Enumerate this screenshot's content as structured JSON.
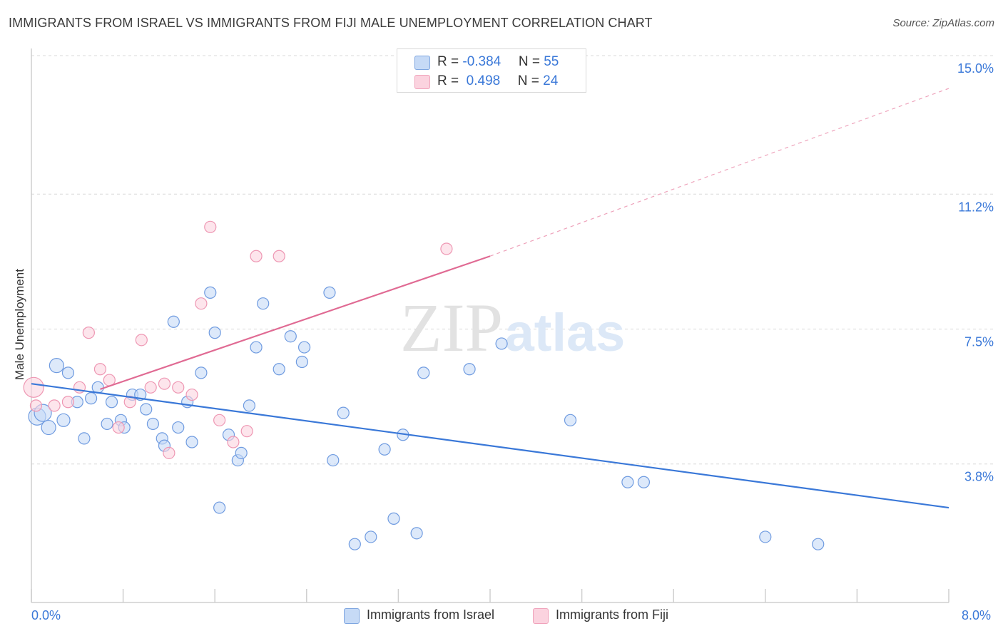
{
  "title": "IMMIGRANTS FROM ISRAEL VS IMMIGRANTS FROM FIJI MALE UNEMPLOYMENT CORRELATION CHART",
  "source": "Source: ZipAtlas.com",
  "watermark": {
    "zip": "ZIP",
    "atlas": "atlas"
  },
  "legend": {
    "israel": {
      "r_label": "R = ",
      "r_value": "-0.384",
      "n_label": "N = ",
      "n_value": "55"
    },
    "fiji": {
      "r_label": "R = ",
      "r_value": " 0.498",
      "n_label": "N = ",
      "n_value": "24"
    }
  },
  "colors": {
    "israel": "#a9c8f2",
    "israel_line": "#3a78d8",
    "fiji": "#f7b9cc",
    "fiji_line": "#e06a93",
    "axis_text": "#3a78d8"
  },
  "chart_data": {
    "type": "scatter",
    "title": "IMMIGRANTS FROM ISRAEL VS IMMIGRANTS FROM FIJI MALE UNEMPLOYMENT CORRELATION CHART",
    "xlabel": "",
    "ylabel": "Male Unemployment",
    "xlim": [
      0,
      8.0
    ],
    "ylim": [
      0,
      15.0
    ],
    "x_tick_labels": [
      "0.0%",
      "8.0%"
    ],
    "y_ticks": [
      3.8,
      7.5,
      11.2,
      15.0
    ],
    "y_tick_labels": [
      "3.8%",
      "7.5%",
      "11.2%",
      "15.0%"
    ],
    "grid": true,
    "legend_position": "top-center",
    "series": [
      {
        "name": "Immigrants from Israel",
        "color": "#a9c8f2",
        "trend": {
          "x0": 0.0,
          "y0": 6.0,
          "x1": 8.0,
          "y1": 2.6
        },
        "points": [
          [
            0.05,
            5.1
          ],
          [
            0.1,
            5.2
          ],
          [
            0.15,
            4.8
          ],
          [
            0.22,
            6.5
          ],
          [
            0.28,
            5.0
          ],
          [
            0.32,
            6.3
          ],
          [
            0.4,
            5.5
          ],
          [
            0.46,
            4.5
          ],
          [
            0.52,
            5.6
          ],
          [
            0.58,
            5.9
          ],
          [
            0.66,
            4.9
          ],
          [
            0.7,
            5.5
          ],
          [
            0.78,
            5.0
          ],
          [
            0.81,
            4.8
          ],
          [
            0.88,
            5.7
          ],
          [
            0.95,
            5.7
          ],
          [
            1.0,
            5.3
          ],
          [
            1.06,
            4.9
          ],
          [
            1.14,
            4.5
          ],
          [
            1.16,
            4.3
          ],
          [
            1.24,
            7.7
          ],
          [
            1.28,
            4.8
          ],
          [
            1.36,
            5.5
          ],
          [
            1.4,
            4.4
          ],
          [
            1.48,
            6.3
          ],
          [
            1.56,
            8.5
          ],
          [
            1.6,
            7.4
          ],
          [
            1.64,
            2.6
          ],
          [
            1.72,
            4.6
          ],
          [
            1.8,
            3.9
          ],
          [
            1.83,
            4.1
          ],
          [
            1.9,
            5.4
          ],
          [
            1.96,
            7.0
          ],
          [
            2.02,
            8.2
          ],
          [
            2.16,
            6.4
          ],
          [
            2.26,
            7.3
          ],
          [
            2.36,
            6.6
          ],
          [
            2.38,
            7.0
          ],
          [
            2.6,
            8.5
          ],
          [
            2.63,
            3.9
          ],
          [
            2.72,
            5.2
          ],
          [
            2.82,
            1.6
          ],
          [
            2.96,
            1.8
          ],
          [
            3.08,
            4.2
          ],
          [
            3.16,
            2.3
          ],
          [
            3.24,
            4.6
          ],
          [
            3.36,
            1.9
          ],
          [
            3.42,
            6.3
          ],
          [
            3.82,
            6.4
          ],
          [
            4.1,
            7.1
          ],
          [
            4.7,
            5.0
          ],
          [
            5.2,
            3.3
          ],
          [
            5.34,
            3.3
          ],
          [
            6.4,
            1.8
          ],
          [
            6.86,
            1.6
          ]
        ],
        "sizes": [
          12,
          12,
          10,
          10,
          9,
          8,
          8,
          8,
          8,
          8,
          8,
          8,
          8,
          8,
          8,
          8,
          8,
          8,
          8,
          8,
          8,
          8,
          8,
          8,
          8,
          8,
          8,
          8,
          8,
          8,
          8,
          8,
          8,
          8,
          8,
          8,
          8,
          8,
          8,
          8,
          8,
          8,
          8,
          8,
          8,
          8,
          8,
          8,
          8,
          8,
          8,
          8,
          8,
          8,
          8
        ]
      },
      {
        "name": "Immigrants from Fiji",
        "color": "#f7b9cc",
        "trend": {
          "x0": 0.6,
          "y0": 5.85,
          "x1": 4.0,
          "y1": 9.5
        },
        "trend_dashed": {
          "x0": 4.0,
          "y0": 9.5,
          "x1": 8.0,
          "y1": 14.1
        },
        "points": [
          [
            0.02,
            5.9
          ],
          [
            0.04,
            5.4
          ],
          [
            0.2,
            5.4
          ],
          [
            0.32,
            5.5
          ],
          [
            0.42,
            5.9
          ],
          [
            0.5,
            7.4
          ],
          [
            0.6,
            6.4
          ],
          [
            0.68,
            6.1
          ],
          [
            0.76,
            4.8
          ],
          [
            0.86,
            5.5
          ],
          [
            0.96,
            7.2
          ],
          [
            1.04,
            5.9
          ],
          [
            1.16,
            6.0
          ],
          [
            1.2,
            4.1
          ],
          [
            1.28,
            5.9
          ],
          [
            1.4,
            5.7
          ],
          [
            1.48,
            8.2
          ],
          [
            1.56,
            10.3
          ],
          [
            1.64,
            5.0
          ],
          [
            1.76,
            4.4
          ],
          [
            1.88,
            4.7
          ],
          [
            1.96,
            9.5
          ],
          [
            2.16,
            9.5
          ],
          [
            3.62,
            9.7
          ]
        ],
        "sizes": [
          14,
          8,
          8,
          8,
          8,
          8,
          8,
          8,
          8,
          8,
          8,
          8,
          8,
          8,
          8,
          8,
          8,
          8,
          8,
          8,
          8,
          8,
          8,
          8
        ]
      }
    ]
  },
  "bottom_legend": {
    "israel": "Immigrants from Israel",
    "fiji": "Immigrants from Fiji"
  }
}
